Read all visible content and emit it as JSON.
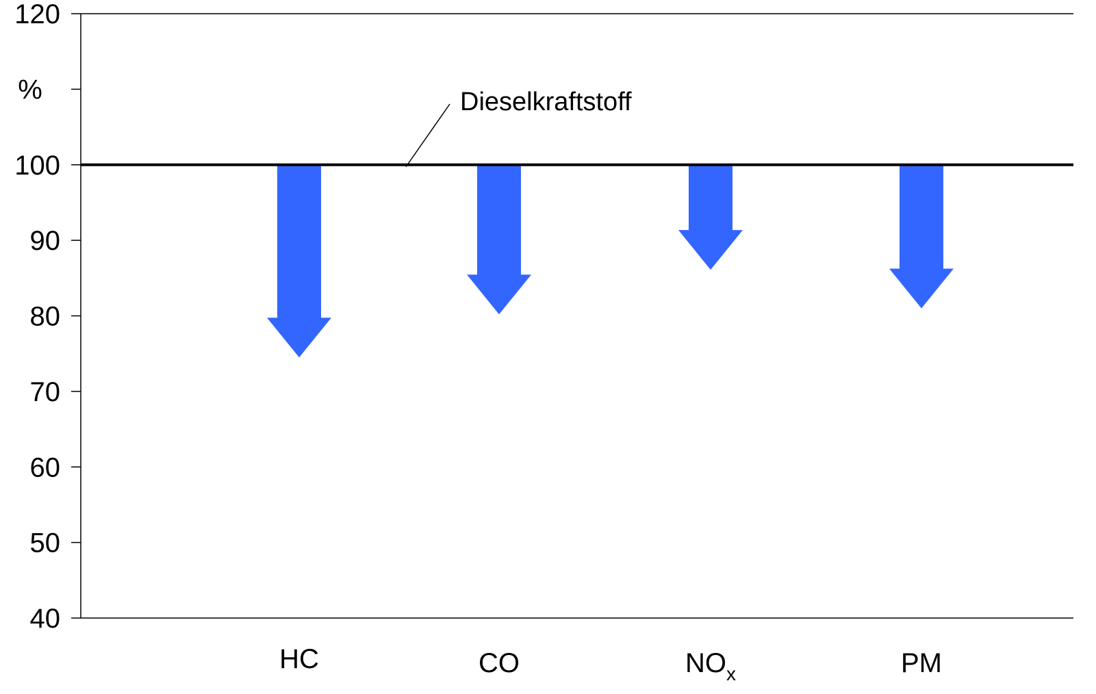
{
  "chart_data": {
    "type": "bar",
    "ylabel": "%",
    "ylim": [
      40,
      120
    ],
    "yticks": [
      40,
      50,
      60,
      70,
      80,
      90,
      100,
      110,
      120
    ],
    "ytick_labels": [
      "40",
      "50",
      "60",
      "70",
      "80",
      "90",
      "100",
      "",
      "120"
    ],
    "baseline": 100,
    "baseline_label": "Dieselkraftstoff",
    "categories": [
      {
        "base": "HC",
        "sub": ""
      },
      {
        "base": "CO",
        "sub": ""
      },
      {
        "base": "NO",
        "sub": "x"
      },
      {
        "base": "PM",
        "sub": ""
      }
    ],
    "values": [
      74.5,
      80.2,
      86.1,
      81.0
    ],
    "grid": false,
    "legend": "none",
    "colors": {
      "arrow": "#3366ff",
      "baseline": "#000000",
      "axis": "#000000"
    }
  }
}
